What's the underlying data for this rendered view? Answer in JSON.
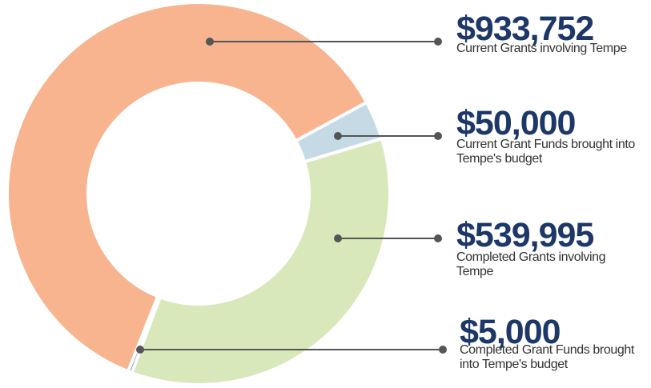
{
  "chart_data": {
    "type": "pie",
    "donut": true,
    "categories": [
      "Current Grants involving Tempe",
      "Current Grant Funds brought into Tempe's budget",
      "Completed Grants involving Tempe",
      "Completed Grant Funds brought into Tempe's budget"
    ],
    "values": [
      933752,
      50000,
      539995,
      5000
    ],
    "value_labels": [
      "$933,752",
      "$50,000",
      "$539,995",
      "$5,000"
    ],
    "colors": [
      "#f7b48f",
      "#c6dae6",
      "#d8e8ba",
      "#5c7ba6"
    ]
  }
}
